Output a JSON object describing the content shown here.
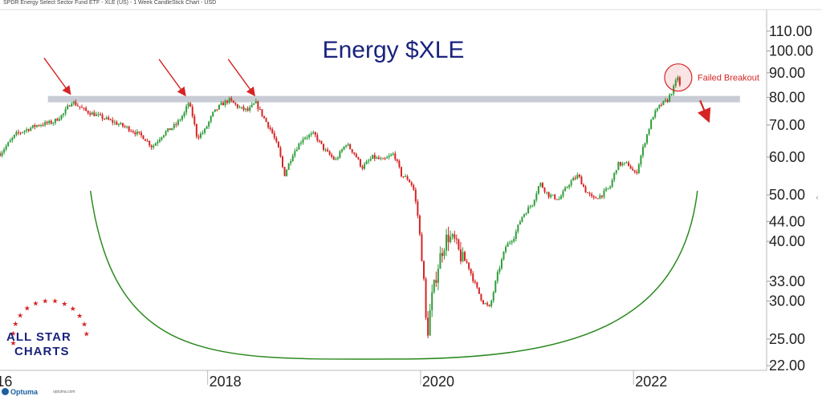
{
  "header": {
    "text": "SPDR Energy Select Sector Fund ETF - XLE (US) - 1 Week CandleStick Chart - USD"
  },
  "footer": {
    "logo": "Optuma",
    "url": "optuma.com"
  },
  "brand": {
    "line1": "ALL STAR",
    "line2": "CHARTS"
  },
  "colors": {
    "up": "#2e9e3a",
    "down": "#d62424",
    "title": "#1a237e",
    "resistance": "#c9ccd4",
    "arc": "#2b8a1f",
    "annotation": "#d62424"
  },
  "chart_data": {
    "type": "candlestick",
    "title": "Energy $XLE",
    "y_scale": "log",
    "ylim": [
      21.5,
      122
    ],
    "y_ticks": [
      22,
      25,
      30,
      33,
      40,
      44,
      50,
      60,
      70,
      80,
      90,
      100,
      110
    ],
    "y_tick_labels": [
      "22.00",
      "25.00",
      "30.00",
      "33.00",
      "40.00",
      "44.00",
      "50.00",
      "60.00",
      "70.00",
      "80.00",
      "90.00",
      "100.00",
      "110.00"
    ],
    "x_tick_labels": [
      "16",
      "2018",
      "2020",
      "2022"
    ],
    "x_tick_years": [
      2016,
      2018,
      2020,
      2022
    ],
    "x_range": [
      2016.05,
      2023.25
    ],
    "resistance_level": 79.3,
    "resistance_x": [
      2016.5,
      2023.0
    ],
    "annotations": [
      {
        "text": "Failed Breakout",
        "x": 2022.42,
        "y": 88
      }
    ],
    "arrows_at_highs": [
      {
        "x": 2016.72,
        "y": 78.5
      },
      {
        "x": 2017.8,
        "y": 78
      },
      {
        "x": 2018.45,
        "y": 78
      }
    ],
    "breakdown_arrow": {
      "x": 2022.55,
      "y": 77
    },
    "bowl_arc": {
      "x_start": 2016.9,
      "x_end": 2022.6,
      "bottom_x": 2019.75,
      "y_start": 51,
      "bottom_y": 22.7,
      "y_end": 51
    },
    "weekly_close_path": [
      [
        2016.05,
        61
      ],
      [
        2016.2,
        67
      ],
      [
        2016.4,
        70
      ],
      [
        2016.55,
        71
      ],
      [
        2016.65,
        74
      ],
      [
        2016.72,
        78.5
      ],
      [
        2016.85,
        75
      ],
      [
        2017.05,
        72
      ],
      [
        2017.25,
        69
      ],
      [
        2017.4,
        66
      ],
      [
        2017.48,
        63
      ],
      [
        2017.58,
        67
      ],
      [
        2017.7,
        70
      ],
      [
        2017.78,
        74
      ],
      [
        2017.82,
        78
      ],
      [
        2017.86,
        73
      ],
      [
        2017.9,
        66
      ],
      [
        2017.97,
        68
      ],
      [
        2018.05,
        74
      ],
      [
        2018.12,
        77
      ],
      [
        2018.2,
        79
      ],
      [
        2018.3,
        76
      ],
      [
        2018.38,
        75
      ],
      [
        2018.45,
        78
      ],
      [
        2018.52,
        73
      ],
      [
        2018.6,
        68
      ],
      [
        2018.67,
        62
      ],
      [
        2018.72,
        55
      ],
      [
        2018.8,
        61
      ],
      [
        2018.9,
        66
      ],
      [
        2019.0,
        67
      ],
      [
        2019.1,
        62
      ],
      [
        2019.2,
        59
      ],
      [
        2019.3,
        64
      ],
      [
        2019.38,
        61
      ],
      [
        2019.45,
        57
      ],
      [
        2019.55,
        60
      ],
      [
        2019.65,
        59
      ],
      [
        2019.75,
        61
      ],
      [
        2019.82,
        55
      ],
      [
        2019.88,
        54
      ],
      [
        2019.93,
        52
      ],
      [
        2019.97,
        46
      ],
      [
        2020.02,
        36
      ],
      [
        2020.06,
        25
      ],
      [
        2020.1,
        30
      ],
      [
        2020.18,
        37
      ],
      [
        2020.25,
        41
      ],
      [
        2020.32,
        40
      ],
      [
        2020.38,
        37
      ],
      [
        2020.44,
        36
      ],
      [
        2020.5,
        33
      ],
      [
        2020.58,
        30
      ],
      [
        2020.65,
        29
      ],
      [
        2020.72,
        34
      ],
      [
        2020.8,
        39
      ],
      [
        2020.88,
        41
      ],
      [
        2020.95,
        45
      ],
      [
        2021.05,
        48
      ],
      [
        2021.12,
        53
      ],
      [
        2021.2,
        50
      ],
      [
        2021.3,
        49
      ],
      [
        2021.4,
        53
      ],
      [
        2021.48,
        55
      ],
      [
        2021.55,
        51
      ],
      [
        2021.62,
        49
      ],
      [
        2021.7,
        50
      ],
      [
        2021.78,
        52
      ],
      [
        2021.85,
        58
      ],
      [
        2021.95,
        58
      ],
      [
        2022.02,
        55
      ],
      [
        2022.1,
        64
      ],
      [
        2022.18,
        73
      ],
      [
        2022.25,
        77
      ],
      [
        2022.32,
        79
      ],
      [
        2022.38,
        84
      ],
      [
        2022.42,
        89
      ],
      [
        2022.45,
        80
      ]
    ]
  }
}
